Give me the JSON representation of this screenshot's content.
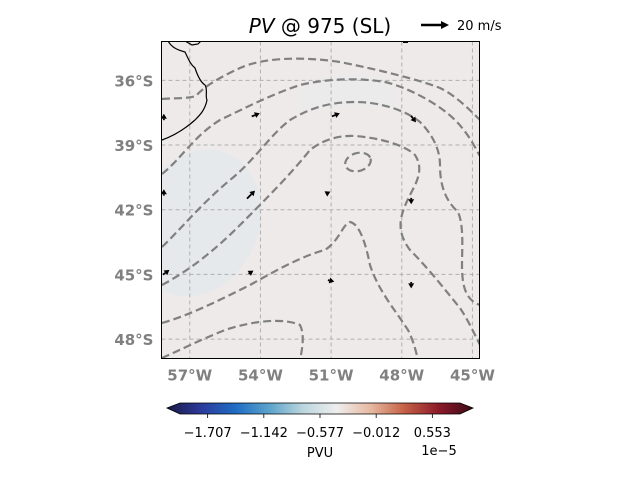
{
  "title": {
    "variable": "PV",
    "rest": " @ 975 (SL)"
  },
  "reference_vector": {
    "label": "20 m/s",
    "magnitude_ms": 20
  },
  "map": {
    "lon_range": [
      -58.2,
      -44.7
    ],
    "lat_range": [
      -48.9,
      -34.2
    ],
    "lon_ticks": [
      {
        "lon": -57,
        "label": "57°W"
      },
      {
        "lon": -54,
        "label": "54°W"
      },
      {
        "lon": -51,
        "label": "51°W"
      },
      {
        "lon": -48,
        "label": "48°W"
      },
      {
        "lon": -45,
        "label": "45°W"
      }
    ],
    "lat_ticks": [
      {
        "lat": -36,
        "label": "36°S"
      },
      {
        "lat": -39,
        "label": "39°S"
      },
      {
        "lat": -42,
        "label": "42°S"
      },
      {
        "lat": -45,
        "label": "45°S"
      },
      {
        "lat": -48,
        "label": "48°S"
      }
    ],
    "gridlines": true,
    "background_color": "#eeeae9",
    "contour_color": "#808080",
    "coastline_color": "#000000"
  },
  "colorbar": {
    "label": "PVU",
    "scale_label": "1e−5",
    "ticks": [
      "−1.707",
      "−1.142",
      "−0.577",
      "−0.012",
      "0.553"
    ],
    "colormap": [
      "#1a1a45",
      "#2c3a9a",
      "#1f6cc4",
      "#5aa3cc",
      "#bcd6de",
      "#eeeeee",
      "#e6b8a0",
      "#c45f45",
      "#8b1a2a",
      "#3d0a16"
    ]
  },
  "wind_vectors": [
    {
      "lon": -58.1,
      "lat": -37.7,
      "u": 0,
      "v": 4
    },
    {
      "lon": -54.2,
      "lat": -37.6,
      "u": 5,
      "v": 2
    },
    {
      "lon": -50.8,
      "lat": -37.6,
      "u": 5,
      "v": 2
    },
    {
      "lon": -47.5,
      "lat": -37.8,
      "u": 3,
      "v": -4
    },
    {
      "lon": -58.1,
      "lat": -41.2,
      "u": 0,
      "v": 4
    },
    {
      "lon": -54.4,
      "lat": -41.3,
      "u": 5,
      "v": 5
    },
    {
      "lon": -51.1,
      "lat": -41.2,
      "u": 2,
      "v": 1
    },
    {
      "lon": -47.6,
      "lat": -41.6,
      "u": 0,
      "v": -4
    },
    {
      "lon": -58.0,
      "lat": -44.9,
      "u": 4,
      "v": 3
    },
    {
      "lon": -54.4,
      "lat": -44.9,
      "u": 3,
      "v": 2
    },
    {
      "lon": -51.0,
      "lat": -45.3,
      "u": 4,
      "v": -1
    },
    {
      "lon": -47.6,
      "lat": -45.5,
      "u": 0,
      "v": -4
    }
  ]
}
